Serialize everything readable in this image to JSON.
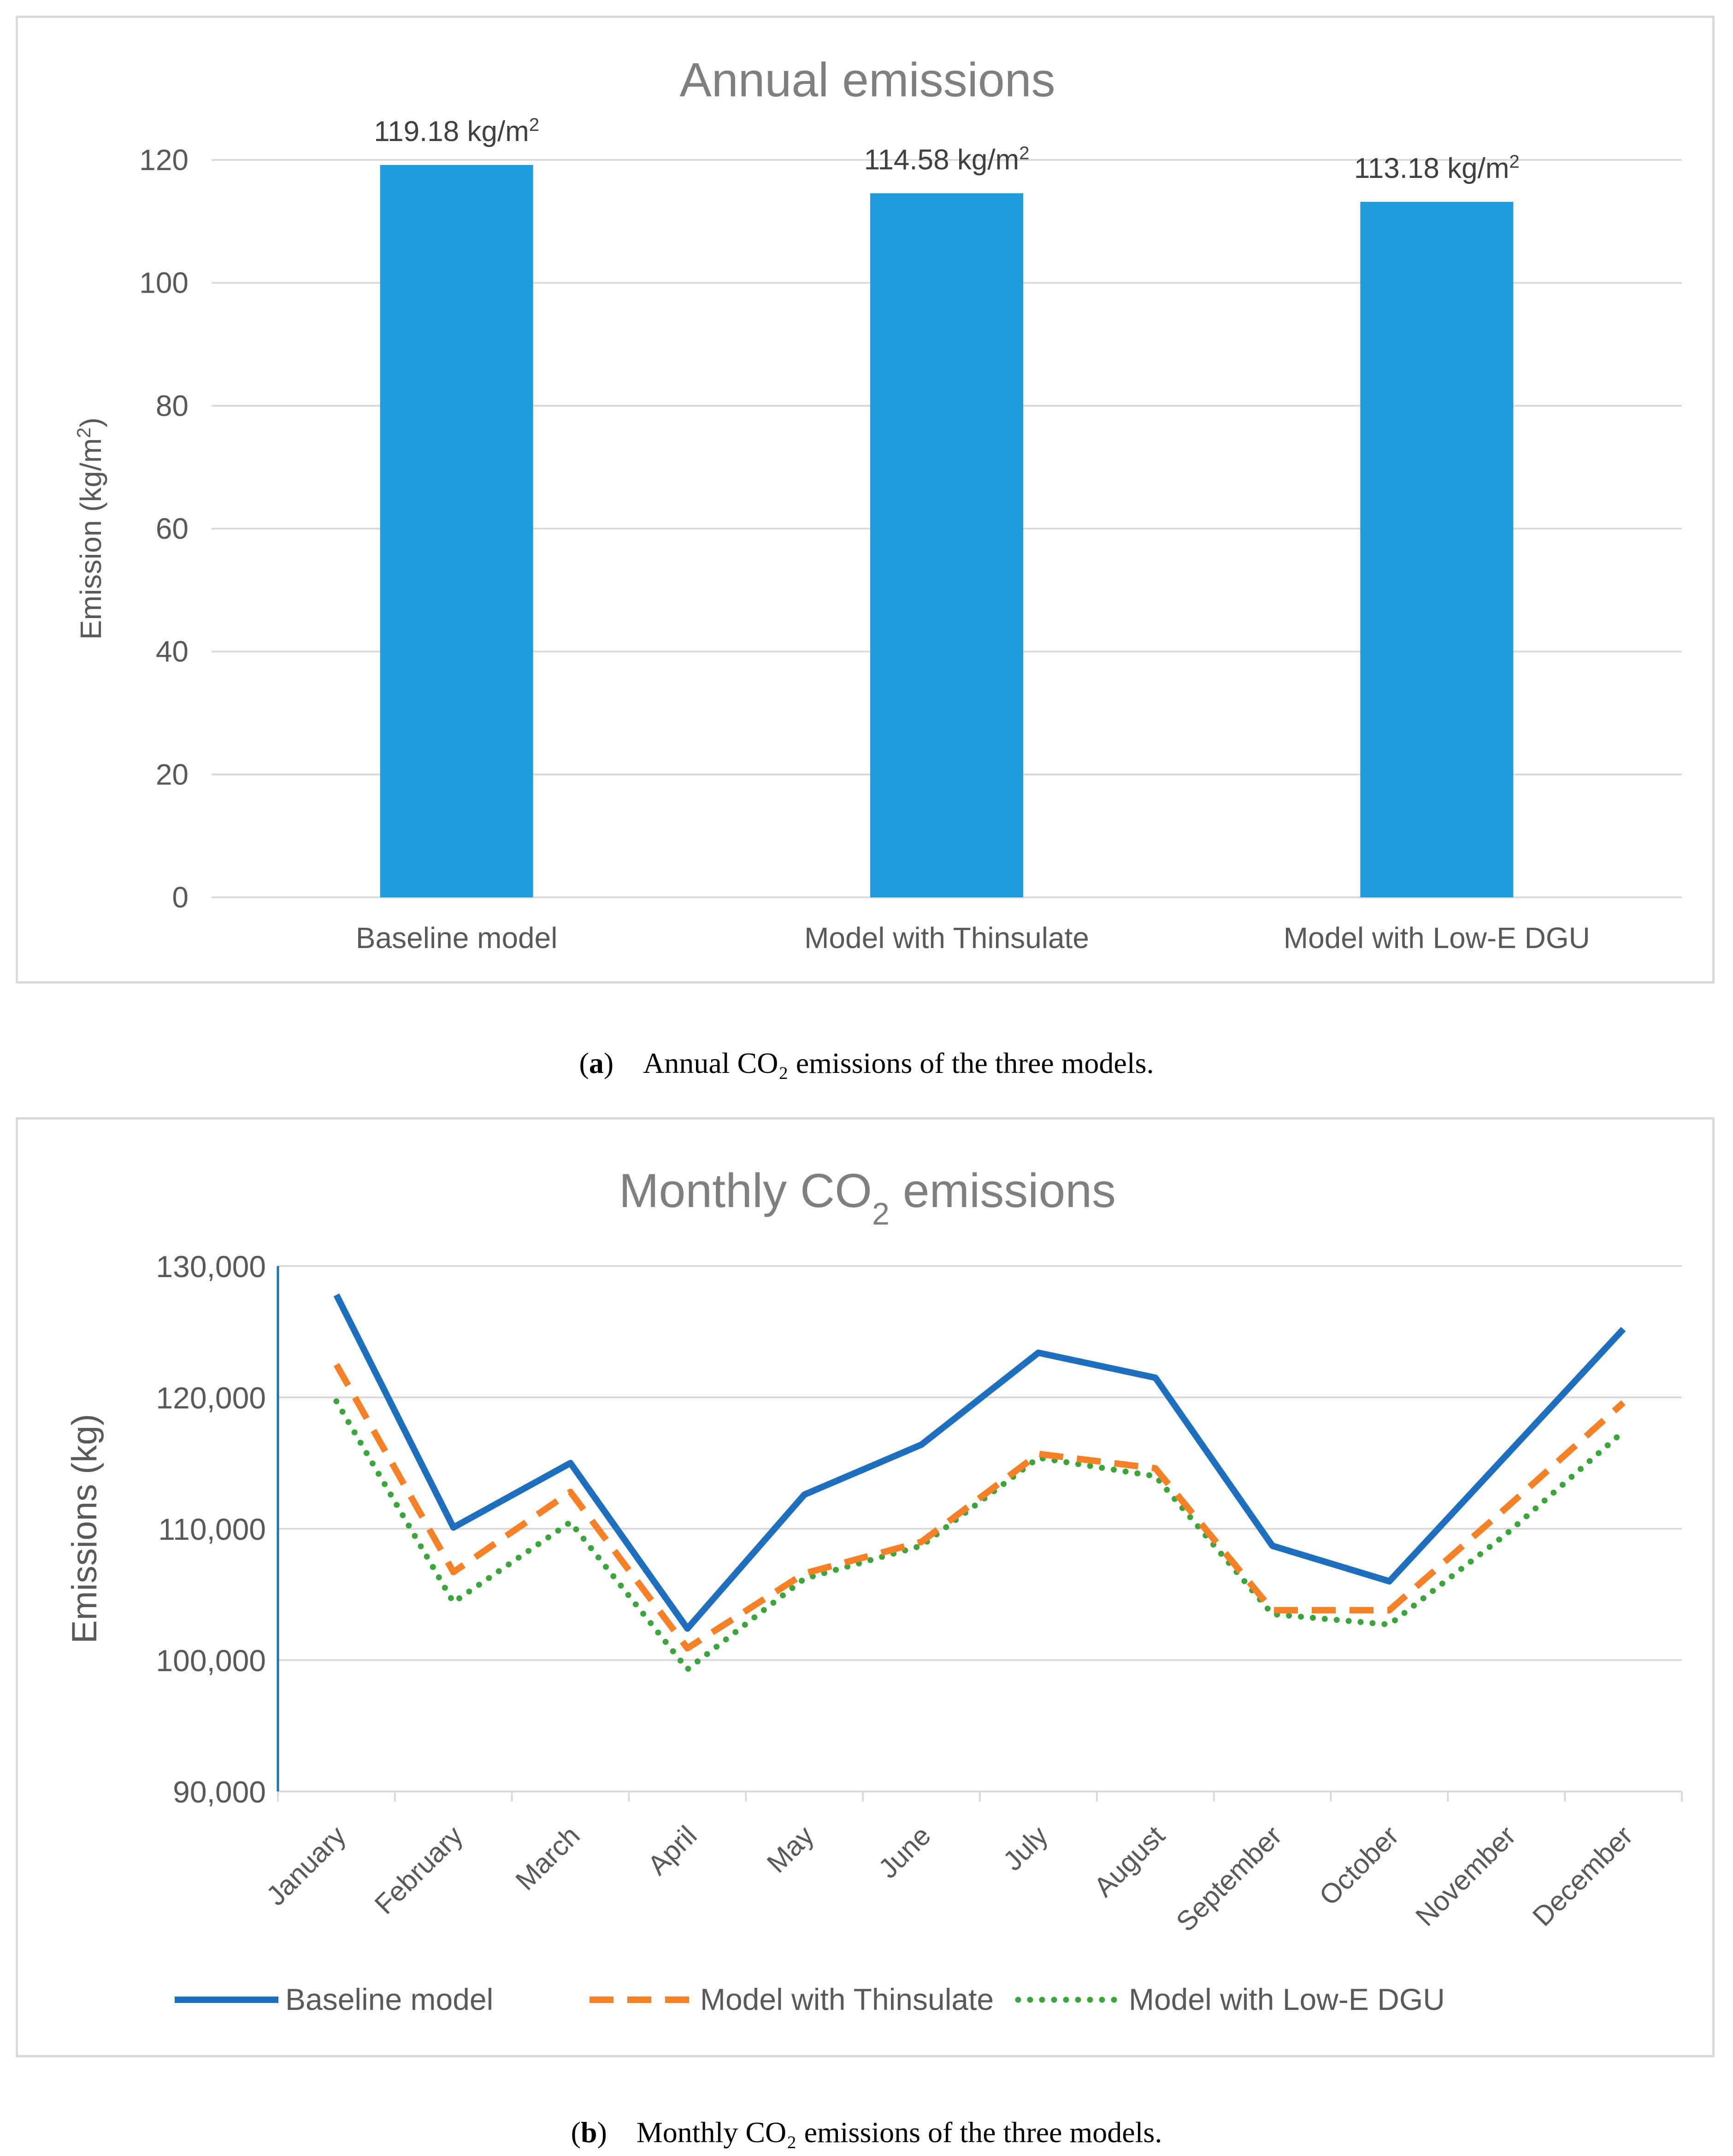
{
  "chart_data": [
    {
      "type": "bar",
      "title": "Annual emissions",
      "xlabel": "",
      "ylabel": "Emission (kg/m2)",
      "ylabel_prefix": "Emission (kg/m",
      "ylabel_sup": "2",
      "ylabel_suffix": ")",
      "ylim": [
        0,
        120
      ],
      "yticks": [
        0,
        20,
        40,
        60,
        80,
        100,
        120
      ],
      "grid": true,
      "categories": [
        "Baseline model",
        "Model with Thinsulate",
        "Model with Low-E DGU"
      ],
      "values": [
        119.18,
        114.58,
        113.18
      ],
      "data_labels": [
        "119.18 kg/m",
        "114.58 kg/m",
        "113.18 kg/m"
      ],
      "data_label_sup": "2",
      "color": "#1f9cd9"
    },
    {
      "type": "line",
      "title": "Monthly CO2 emissions",
      "title_prefix": "Monthly CO",
      "title_sub": "2",
      "title_suffix": " emissions",
      "xlabel": "",
      "ylabel": "Emissions (kg)",
      "ylim": [
        90000,
        130000
      ],
      "yticks": [
        90000,
        100000,
        110000,
        120000,
        130000
      ],
      "ytick_labels": [
        "90,000",
        "100,000",
        "110,000",
        "120,000",
        "130,000"
      ],
      "grid": true,
      "legend": "bottom",
      "categories": [
        "January",
        "February",
        "March",
        "April",
        "May",
        "June",
        "July",
        "August",
        "September",
        "October",
        "November",
        "December"
      ],
      "series": [
        {
          "name": "Baseline model",
          "color": "#1f6fbf",
          "dash": "solid",
          "values": [
            127800,
            110100,
            115000,
            102400,
            112600,
            116400,
            123400,
            121500,
            108700,
            106000,
            115600,
            125200
          ]
        },
        {
          "name": "Model with Thinsulate",
          "color": "#f58025",
          "dash": "dashed",
          "values": [
            122500,
            106700,
            112800,
            100900,
            106600,
            109000,
            115700,
            114600,
            103800,
            103800,
            111600,
            119600
          ]
        },
        {
          "name": "Model with Low-E DGU",
          "color": "#3aa53a",
          "dash": "dotted",
          "values": [
            119700,
            104400,
            110500,
            99300,
            106200,
            108700,
            115400,
            114000,
            103500,
            102700,
            109600,
            117400
          ]
        }
      ]
    }
  ],
  "captions": {
    "a_label": "a",
    "a_text": "Annual CO₂ emissions of the three models.",
    "b_label": "b",
    "b_text": "Monthly CO₂ emissions of the three models."
  }
}
